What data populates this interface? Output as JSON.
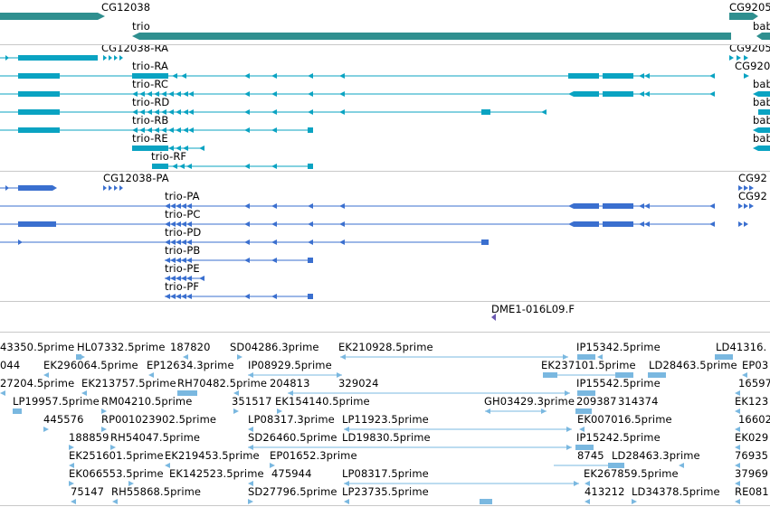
{
  "colors": {
    "gene": "#2f8f8f",
    "transcript": "#0aa3c2",
    "cds": "#3a6fcf",
    "clone": "#6a58b0",
    "est": "#7ab8e0"
  },
  "genes": {
    "labels": [
      "CG12038",
      "CG9205",
      "trio",
      "bab"
    ]
  },
  "transcripts": {
    "labels": [
      "CG12038-RA",
      "CG9205",
      "CG920",
      "trio-RA",
      "trio-RC",
      "trio-RD",
      "trio-RB",
      "trio-RE",
      "trio-RF",
      "bab",
      "bab",
      "bab",
      "bab"
    ]
  },
  "cds": {
    "labels": [
      "CG12038-PA",
      "CG92",
      "CG92",
      "trio-PA",
      "trio-PC",
      "trio-PD",
      "trio-PB",
      "trio-PE",
      "trio-PF"
    ]
  },
  "clones": {
    "labels": [
      "DME1-016L09.F"
    ]
  },
  "ests": {
    "labels": [
      "43350.5prime",
      "HL07332.5prime",
      "187820",
      "SD04286.3prime",
      "EK210928.5prime",
      "IP15342.5prime",
      "LD41316.",
      "044",
      "EK296064.5prime",
      "EP12634.3prime",
      "IP08929.5prime",
      "EK237101.5prime",
      "LD28463.5prime",
      "EP03",
      "27204.5prime",
      "EK213757.5prime",
      "RH70482.5prime",
      "204813",
      "329024",
      "IP15542.5prime",
      "16597",
      "LP19957.5prime",
      "RM04210.5prime",
      "351517",
      "EK154140.5prime",
      "GH03429.3prime",
      "209387",
      "314374",
      "EK123",
      "445576",
      "RP001023902.5prime",
      "LP08317.3prime",
      "LP11923.5prime",
      "EK007016.5prime",
      "16602",
      "188859",
      "RH54047.5prime",
      "SD26460.5prime",
      "LD19830.5prime",
      "IP15242.5prime",
      "EK029",
      "EK251601.5prime",
      "EK219453.5prime",
      "EP01652.3prime",
      "8745",
      "LD28463.3prime",
      "76935",
      "EK066553.5prime",
      "EK142523.5prime",
      "475944",
      "LP08317.5prime",
      "EK267859.5prime",
      "37969",
      "75147",
      "RH55868.5prime",
      "SD27796.5prime",
      "LP23735.5prime",
      "413212",
      "LD34378.5prime",
      "RE081"
    ]
  }
}
